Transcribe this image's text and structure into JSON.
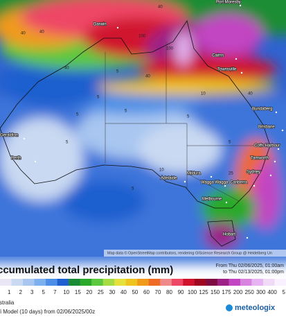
{
  "map": {
    "cities": [
      "Port Moresby",
      "Darwin",
      "Cairns",
      "Townsville",
      "Bundaberg",
      "Brisbane",
      "Coffs Harbour",
      "Tamworth",
      "Geraldton",
      "Perth",
      "Adelaide",
      "Mildura",
      "Wagga Wagga",
      "Sydney",
      "Canberra",
      "Melbourne",
      "Hobart"
    ],
    "contour_labels": [
      "40",
      "100",
      "40",
      "5",
      "40",
      "100",
      "40",
      "5",
      "5",
      "5",
      "5",
      "5",
      "10",
      "5",
      "25",
      "40",
      "5",
      "40",
      "10"
    ],
    "attribution": "Map data © OpenStreetMap contributors, rendering GIScience Research Group @ Heidelberg Un"
  },
  "legend": {
    "title": "ccumulated total precipitation (mm)",
    "from": "From Thu 02/06/2025, 01:00am",
    "to": "to Thu 02/13/2025, 01:00pm",
    "levels": [
      1,
      2,
      3,
      5,
      7,
      10,
      15,
      20,
      25,
      30,
      40,
      50,
      60,
      70,
      80,
      90,
      100,
      125,
      150,
      175,
      200,
      250,
      300,
      400,
      5
    ],
    "colors": [
      "#ebe6f5",
      "#c9d9f2",
      "#a8c6f0",
      "#7db0ee",
      "#4d8fe6",
      "#1f5fcf",
      "#1b8c35",
      "#2aa92b",
      "#5cc83f",
      "#a5dc43",
      "#e6e03c",
      "#f0c41f",
      "#f09a1a",
      "#ee6a25",
      "#f08a8a",
      "#ee4766",
      "#d0122e",
      "#a0061f",
      "#7d0a40",
      "#9c2086",
      "#c245c2",
      "#d684e0",
      "#e6b4f2",
      "#f1d9f8",
      "#f9f1ff"
    ]
  },
  "footer": {
    "region": "stralia",
    "model": "fi Model (10 days) from 02/06/2025/00z",
    "logo": "meteologix"
  }
}
